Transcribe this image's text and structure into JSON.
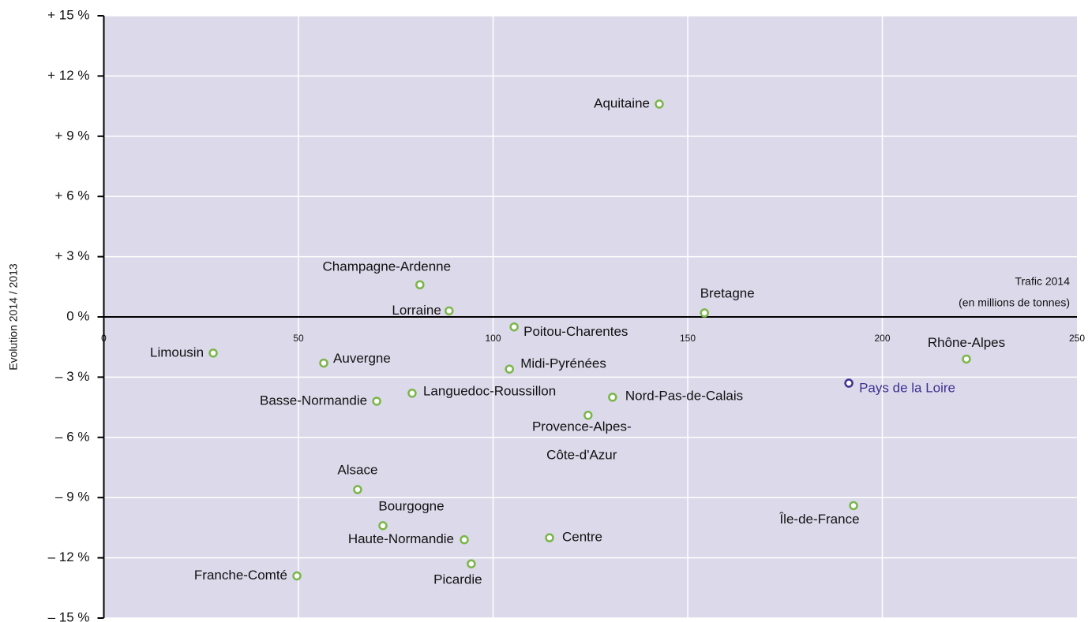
{
  "chart_data": {
    "type": "scatter",
    "y_label": "Evolution 2014 / 2013",
    "x_label": [
      "Trafic 2014",
      "(en millions de tonnes)"
    ],
    "labels": [
      [
        "Aquitaine"
      ],
      [
        "Champagne-Ardenne"
      ],
      [
        "Lorraine"
      ],
      [
        "Bretagne"
      ],
      [
        "Poitou-Charentes"
      ],
      [
        "Limousin"
      ],
      [
        "Auvergne"
      ],
      [
        "Midi-Pyrénées"
      ],
      [
        "Rhône-Alpes"
      ],
      [
        "Pays de la Loire"
      ],
      [
        "Languedoc-Roussillon"
      ],
      [
        "Basse-Normandie"
      ],
      [
        "Nord-Pas-de-Calais"
      ],
      [
        "Provence-Alpes-",
        "Côte-d'Azur"
      ],
      [
        "Alsace"
      ],
      [
        "Île-de-France"
      ],
      [
        "Bourgogne"
      ],
      [
        "Haute-Normandie"
      ],
      [
        "Centre"
      ],
      [
        "Picardie"
      ],
      [
        "Franche-Comté"
      ]
    ],
    "x": [
      142.7,
      81.2,
      88.7,
      154.3,
      105.4,
      28.1,
      56.5,
      104.2,
      221.6,
      191.4,
      79.2,
      70.1,
      130.7,
      124.4,
      65.2,
      192.6,
      71.7,
      92.6,
      114.5,
      94.4,
      49.6
    ],
    "values": [
      10.6,
      1.6,
      0.3,
      0.2,
      -0.5,
      -1.8,
      -2.3,
      -2.6,
      -2.1,
      -3.3,
      -3.8,
      -4.2,
      -4.0,
      -4.9,
      -8.6,
      -9.4,
      -10.4,
      -11.1,
      -11.0,
      -12.3,
      -12.9
    ],
    "colors": [
      "#7ab648",
      "#7ab648",
      "#7ab648",
      "#7ab648",
      "#7ab648",
      "#7ab648",
      "#7ab648",
      "#7ab648",
      "#7ab648",
      "#3d3191",
      "#7ab648",
      "#7ab648",
      "#7ab648",
      "#7ab648",
      "#7ab648",
      "#7ab648",
      "#7ab648",
      "#7ab648",
      "#7ab648",
      "#7ab648",
      "#7ab648"
    ],
    "xlim": [
      0,
      250
    ],
    "ylim": [
      -15,
      15
    ],
    "xticks": [
      0,
      50,
      100,
      150,
      200,
      250
    ],
    "yticks": [
      {
        "value": -15,
        "label": "– 15 %"
      },
      {
        "value": -12,
        "label": "– 12 %"
      },
      {
        "value": -9,
        "label": "– 9 %"
      },
      {
        "value": -6,
        "label": "– 6 %"
      },
      {
        "value": -3,
        "label": "– 3 %"
      },
      {
        "value": 0,
        "label": "0 %"
      },
      {
        "value": 3,
        "label": "+ 3 %"
      },
      {
        "value": 6,
        "label": "+ 6 %"
      },
      {
        "value": 9,
        "label": "+ 9 %"
      },
      {
        "value": 12,
        "label": "+ 12 %"
      },
      {
        "value": 15,
        "label": "+ 15 %"
      }
    ],
    "grid": true,
    "plot_background": "#dcd9ea"
  }
}
